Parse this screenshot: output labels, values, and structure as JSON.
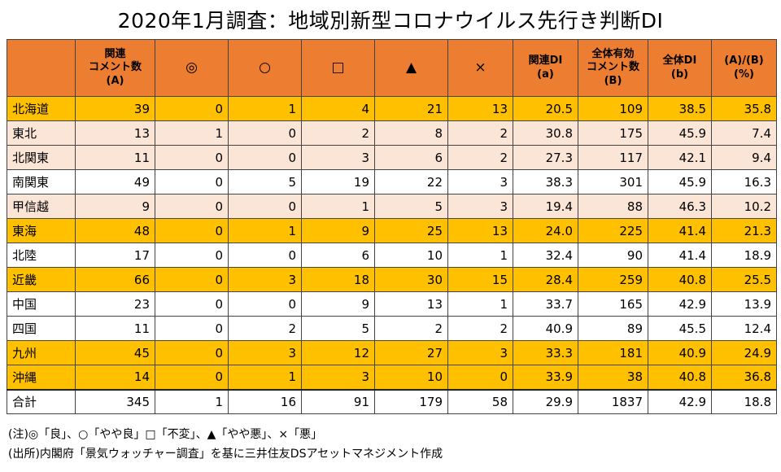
{
  "title": "2020年1月調査：地域別新型コロナウイルス先行き判断DI",
  "colors": {
    "header": "#ED7D31",
    "highlight_row": "#FFC000",
    "light_row": "#FBE5D6",
    "plain_row": "#FFFFFF"
  },
  "columns": [
    {
      "line1": "",
      "line2": "",
      "type": "blank"
    },
    {
      "line1": "関連",
      "line2": "コメント数(A)",
      "type": "text"
    },
    {
      "line1": "◎",
      "line2": "",
      "type": "sym"
    },
    {
      "line1": "○",
      "line2": "",
      "type": "sym"
    },
    {
      "line1": "□",
      "line2": "",
      "type": "sym"
    },
    {
      "line1": "▲",
      "line2": "",
      "type": "sym"
    },
    {
      "line1": "×",
      "line2": "",
      "type": "sym"
    },
    {
      "line1": "関連DI",
      "line2": "(a)",
      "type": "text"
    },
    {
      "line1": "全体有効",
      "line2": "コメント数",
      "line3": "(B)",
      "type": "text"
    },
    {
      "line1": "全体DI",
      "line2": "(b)",
      "type": "text"
    },
    {
      "line1": "(A)/(B)",
      "line2": "(%)",
      "type": "text"
    }
  ],
  "rows": [
    {
      "name": "北海道",
      "style": "hi",
      "cells": [
        "39",
        "0",
        "1",
        "4",
        "21",
        "13",
        "20.5",
        "109",
        "38.5",
        "35.8"
      ]
    },
    {
      "name": "東北",
      "style": "mid",
      "cells": [
        "13",
        "1",
        "0",
        "2",
        "8",
        "2",
        "30.8",
        "175",
        "45.9",
        "7.4"
      ]
    },
    {
      "name": "北関東",
      "style": "mid",
      "cells": [
        "11",
        "0",
        "0",
        "3",
        "6",
        "2",
        "27.3",
        "117",
        "42.1",
        "9.4"
      ]
    },
    {
      "name": "南関東",
      "style": "plain",
      "cells": [
        "49",
        "0",
        "5",
        "19",
        "22",
        "3",
        "38.3",
        "301",
        "45.9",
        "16.3"
      ]
    },
    {
      "name": "甲信越",
      "style": "mid",
      "cells": [
        "9",
        "0",
        "0",
        "1",
        "5",
        "3",
        "19.4",
        "88",
        "46.3",
        "10.2"
      ]
    },
    {
      "name": "東海",
      "style": "hi",
      "cells": [
        "48",
        "0",
        "1",
        "9",
        "25",
        "13",
        "24.0",
        "225",
        "41.4",
        "21.3"
      ]
    },
    {
      "name": "北陸",
      "style": "plain",
      "cells": [
        "17",
        "0",
        "0",
        "6",
        "10",
        "1",
        "32.4",
        "90",
        "41.4",
        "18.9"
      ]
    },
    {
      "name": "近畿",
      "style": "hi",
      "cells": [
        "66",
        "0",
        "3",
        "18",
        "30",
        "15",
        "28.4",
        "259",
        "40.8",
        "25.5"
      ]
    },
    {
      "name": "中国",
      "style": "plain",
      "cells": [
        "23",
        "0",
        "0",
        "9",
        "13",
        "1",
        "33.7",
        "165",
        "42.9",
        "13.9"
      ]
    },
    {
      "name": "四国",
      "style": "plain",
      "cells": [
        "11",
        "0",
        "2",
        "5",
        "2",
        "2",
        "40.9",
        "89",
        "45.5",
        "12.4"
      ]
    },
    {
      "name": "九州",
      "style": "hi",
      "cells": [
        "45",
        "0",
        "3",
        "12",
        "27",
        "3",
        "33.3",
        "181",
        "40.9",
        "24.9"
      ]
    },
    {
      "name": "沖縄",
      "style": "hi",
      "cells": [
        "14",
        "0",
        "1",
        "3",
        "10",
        "0",
        "33.9",
        "38",
        "40.8",
        "36.8"
      ]
    },
    {
      "name": "合計",
      "style": "total",
      "cells": [
        "345",
        "1",
        "16",
        "91",
        "179",
        "58",
        "29.9",
        "1837",
        "42.9",
        "18.8"
      ]
    }
  ],
  "notes": [
    "(注)◎「良」、○「やや良」□「不変」、▲「やや悪」、×「悪」",
    "(出所)内閣府「景気ウォッチャー調査」を基に三井住友DSアセットマネジメント作成"
  ]
}
